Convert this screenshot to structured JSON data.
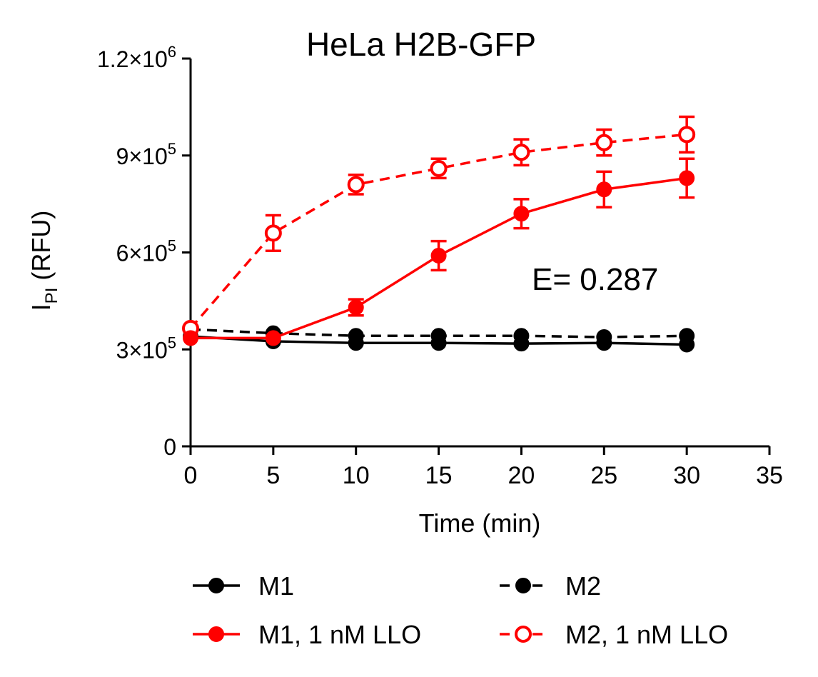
{
  "chart_data": {
    "type": "line",
    "title": "HeLa H2B-GFP",
    "xlabel": "Time (min)",
    "ylabel_main": "I",
    "ylabel_sub": "PI",
    "ylabel_unit": "(RFU)",
    "annotation": "E= 0.287",
    "xlim": [
      0,
      35
    ],
    "ylim": [
      0,
      1200000
    ],
    "x_ticks": [
      0,
      5,
      10,
      15,
      20,
      25,
      30,
      35
    ],
    "y_ticks": [
      {
        "value": 0,
        "mantissa": "0",
        "exp": ""
      },
      {
        "value": 300000,
        "mantissa": "3×10",
        "exp": "5"
      },
      {
        "value": 600000,
        "mantissa": "6×10",
        "exp": "5"
      },
      {
        "value": 900000,
        "mantissa": "9×10",
        "exp": "5"
      },
      {
        "value": 1200000,
        "mantissa": "1.2×10",
        "exp": "6"
      }
    ],
    "x": [
      0,
      5,
      10,
      15,
      20,
      25,
      30
    ],
    "series": [
      {
        "name": "M1",
        "color": "#000000",
        "dashed": false,
        "filled": true,
        "values": [
          340000,
          325000,
          320000,
          320000,
          318000,
          320000,
          315000
        ],
        "errors": [
          0,
          0,
          0,
          0,
          0,
          0,
          0
        ]
      },
      {
        "name": "M2",
        "color": "#000000",
        "dashed": true,
        "filled": true,
        "values": [
          362000,
          350000,
          342000,
          342000,
          342000,
          338000,
          342000
        ],
        "errors": [
          0,
          0,
          0,
          0,
          0,
          0,
          0
        ]
      },
      {
        "name": "M1, 1 nM LLO",
        "color": "#ff0000",
        "dashed": false,
        "filled": true,
        "values": [
          335000,
          335000,
          430000,
          590000,
          720000,
          795000,
          830000
        ],
        "errors": [
          0,
          0,
          25000,
          45000,
          45000,
          55000,
          60000
        ]
      },
      {
        "name": "M2, 1 nM LLO",
        "color": "#ff0000",
        "dashed": true,
        "filled": false,
        "values": [
          365000,
          660000,
          810000,
          860000,
          910000,
          940000,
          965000
        ],
        "errors": [
          0,
          55000,
          30000,
          30000,
          40000,
          40000,
          55000
        ]
      }
    ],
    "legend_position": "bottom"
  }
}
